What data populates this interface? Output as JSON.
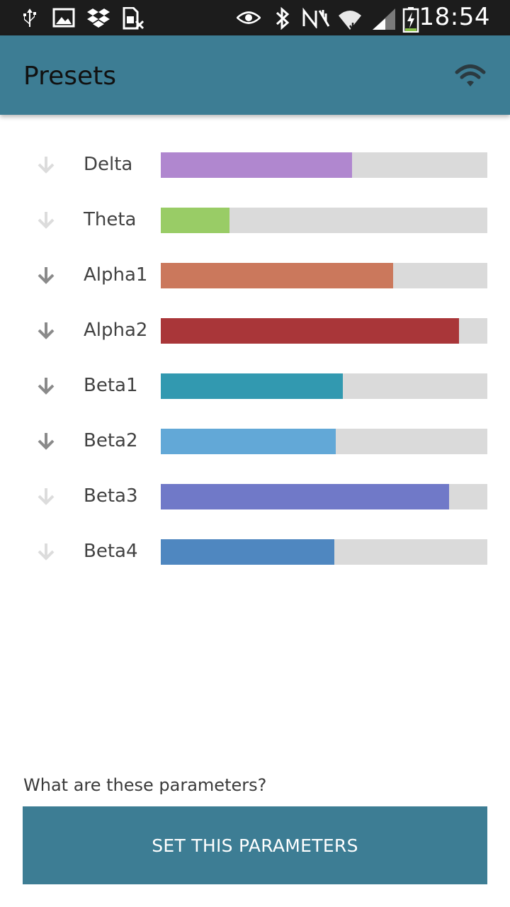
{
  "status_bar": {
    "time": "18:54",
    "icons": [
      "usb-icon",
      "image-icon",
      "dropbox-icon",
      "no-sim-icon",
      "eye-icon",
      "bluetooth-icon",
      "nfc-muted-icon",
      "wifi-icon",
      "signal-icon",
      "battery-charging-icon"
    ]
  },
  "app_bar": {
    "title": "Presets",
    "action_icon": "wifi-icon"
  },
  "bands": [
    {
      "label": "Delta",
      "level": 0.586,
      "color": "#b087cf",
      "arrow": "light"
    },
    {
      "label": "Theta",
      "level": 0.21,
      "color": "#99cc66",
      "arrow": "light"
    },
    {
      "label": "Alpha1",
      "level": 0.711,
      "color": "#cb785c",
      "arrow": "dark"
    },
    {
      "label": "Alpha2",
      "level": 0.913,
      "color": "#a93639",
      "arrow": "dark"
    },
    {
      "label": "Beta1",
      "level": 0.557,
      "color": "#3299b0",
      "arrow": "dark"
    },
    {
      "label": "Beta2",
      "level": 0.536,
      "color": "#62a8d7",
      "arrow": "dark"
    },
    {
      "label": "Beta3",
      "level": 0.883,
      "color": "#7079c8",
      "arrow": "light"
    },
    {
      "label": "Beta4",
      "level": 0.531,
      "color": "#4f87c0",
      "arrow": "light"
    }
  ],
  "colors": {
    "accent": "#3d7d94",
    "track": "#dadada",
    "arrow_dark": "#8a8a8a",
    "arrow_light": "#dcdcdc"
  },
  "footer": {
    "help_text": "What are these parameters?",
    "button_label": "SET THIS PARAMETERS"
  }
}
